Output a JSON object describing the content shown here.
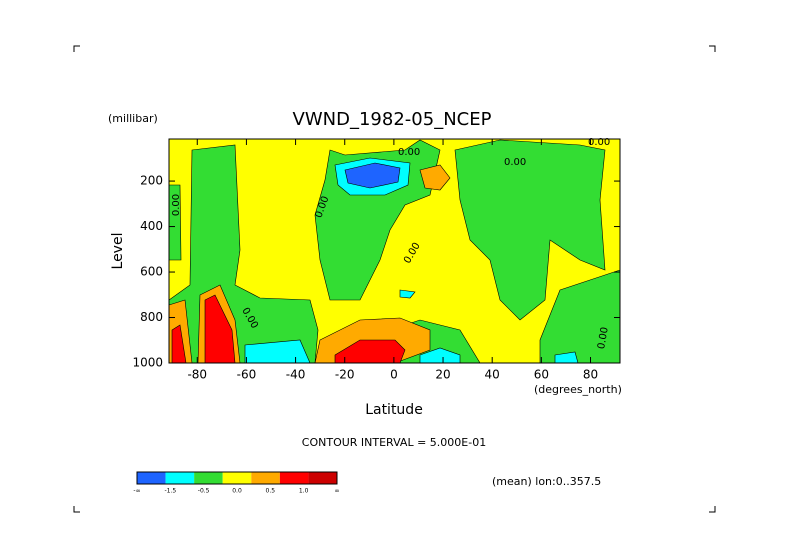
{
  "chart_data": {
    "type": "contour",
    "title": "VWND_1982-05_NCEP",
    "y_unit": "(millibar)",
    "ylabel": "Level",
    "xlabel": "Latitude",
    "x_unit": "(degrees_north)",
    "note": "CONTOUR INTERVAL = 5.000E-01",
    "footer": "(mean) lon:0..357.5",
    "xlim": [
      -91.5,
      92
    ],
    "xticks": [
      -80,
      -60,
      -40,
      -20,
      0,
      20,
      40,
      60,
      80
    ],
    "ylim": [
      15,
      1000
    ],
    "y_inverted": true,
    "yticks": [
      200,
      400,
      600,
      800,
      1000
    ],
    "contour_labels": [
      "0.00",
      "0.00",
      "0.00",
      "0.00",
      "0.00",
      "0.00",
      "0.00",
      "0.00"
    ],
    "colorbar": {
      "colors": [
        "#1e64ff",
        "#00ffff",
        "#33dd33",
        "#ffff00",
        "#ffaa00",
        "#ff0000",
        "#cc0000"
      ],
      "labels": [
        "-∞",
        "-1.5",
        "-0.5",
        "0.0",
        "0.5",
        "1.0",
        "∞"
      ]
    }
  }
}
